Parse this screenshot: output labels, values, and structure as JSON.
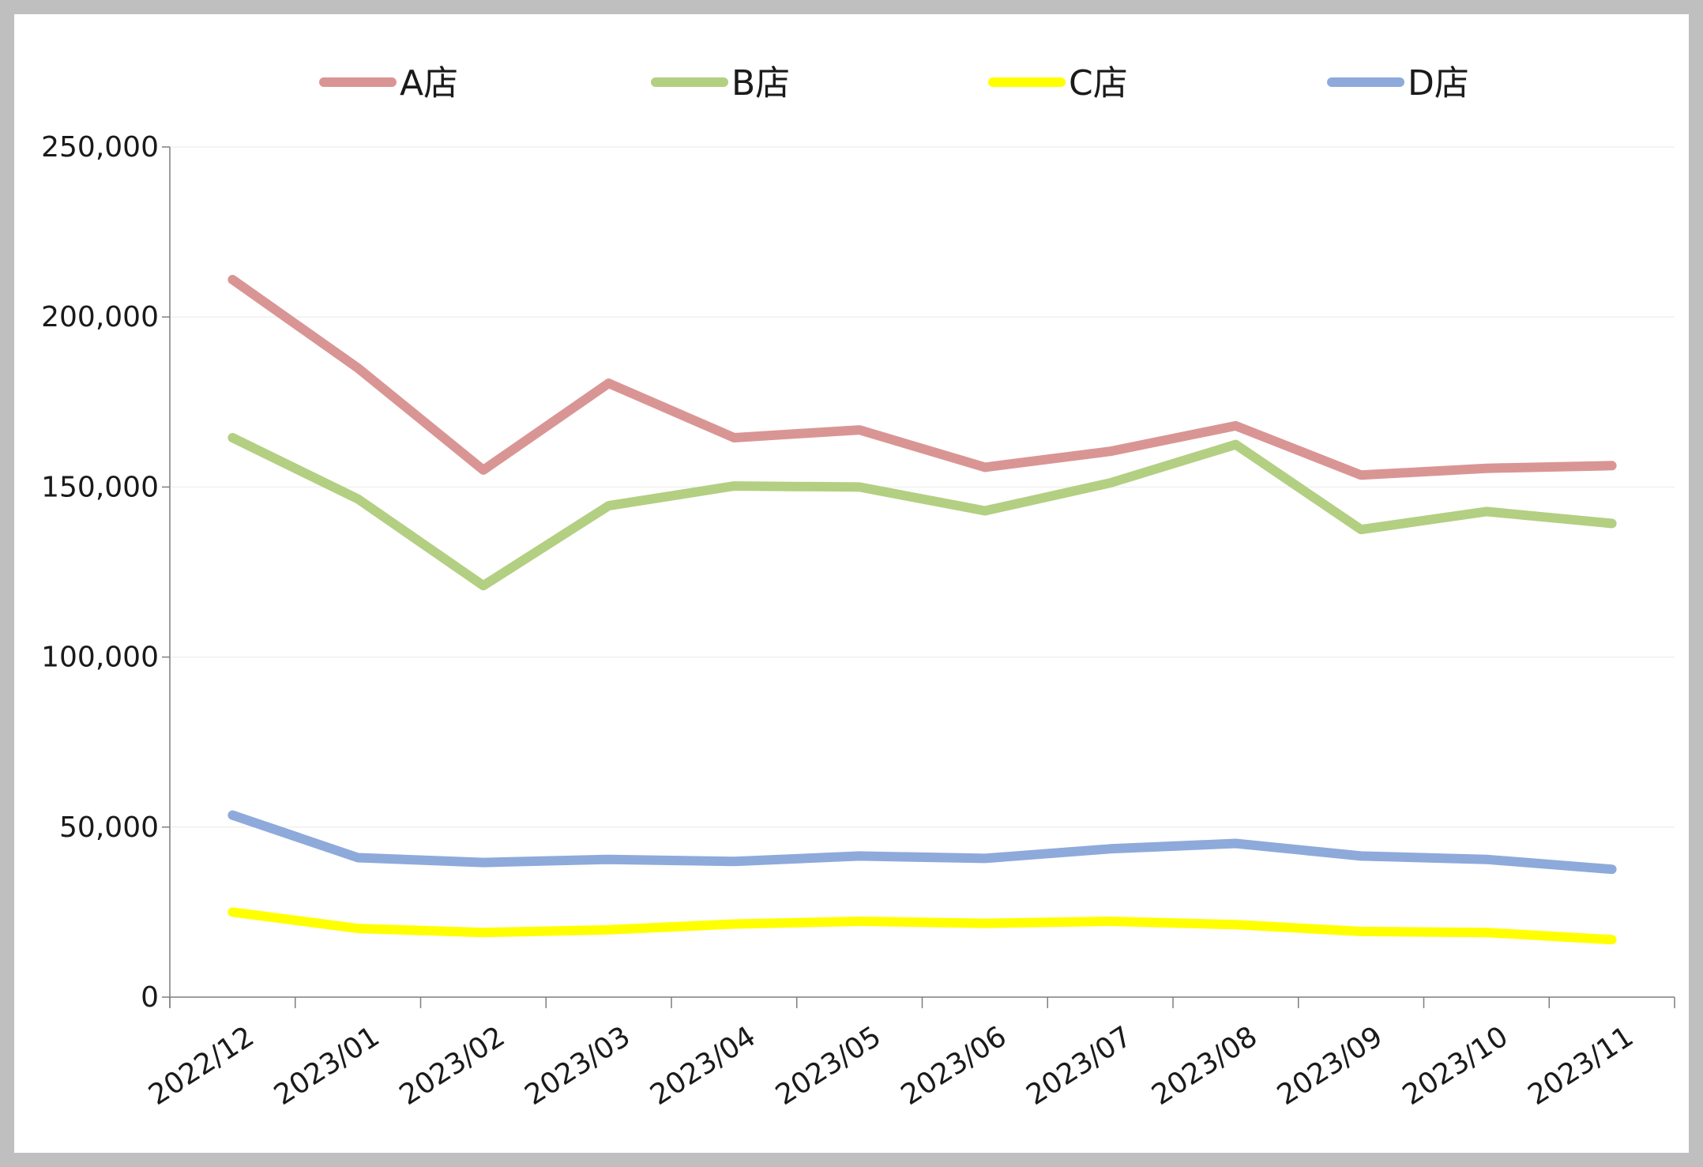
{
  "chart_data": {
    "type": "line",
    "title": "",
    "xlabel": "",
    "ylabel": "",
    "categories": [
      "2022/12",
      "2023/01",
      "2023/02",
      "2023/03",
      "2023/04",
      "2023/05",
      "2023/06",
      "2023/07",
      "2023/08",
      "2023/09",
      "2023/10",
      "2023/11"
    ],
    "ylim": [
      0,
      250000
    ],
    "yticks": [
      0,
      50000,
      100000,
      150000,
      200000,
      250000
    ],
    "ytick_labels": [
      "0",
      "50,000",
      "100,000",
      "150,000",
      "200,000",
      "250,000"
    ],
    "grid": true,
    "legend_position": "top",
    "series": [
      {
        "name": "A店",
        "color": "#d99594",
        "values": [
          211000,
          185000,
          155000,
          180500,
          164500,
          166800,
          155800,
          160500,
          168000,
          153500,
          155500,
          156300
        ]
      },
      {
        "name": "B店",
        "color": "#b3cf82",
        "values": [
          164500,
          146500,
          121000,
          144500,
          150300,
          150000,
          143000,
          151200,
          162500,
          137500,
          142800,
          139300
        ]
      },
      {
        "name": "C店",
        "color": "#ffff00",
        "values": [
          25000,
          20200,
          19000,
          19800,
          21500,
          22300,
          21700,
          22300,
          21300,
          19300,
          19000,
          16900
        ]
      },
      {
        "name": "D店",
        "color": "#8eaadb",
        "values": [
          53500,
          41000,
          39600,
          40500,
          39900,
          41500,
          40800,
          43600,
          45200,
          41500,
          40500,
          37600
        ]
      }
    ]
  }
}
